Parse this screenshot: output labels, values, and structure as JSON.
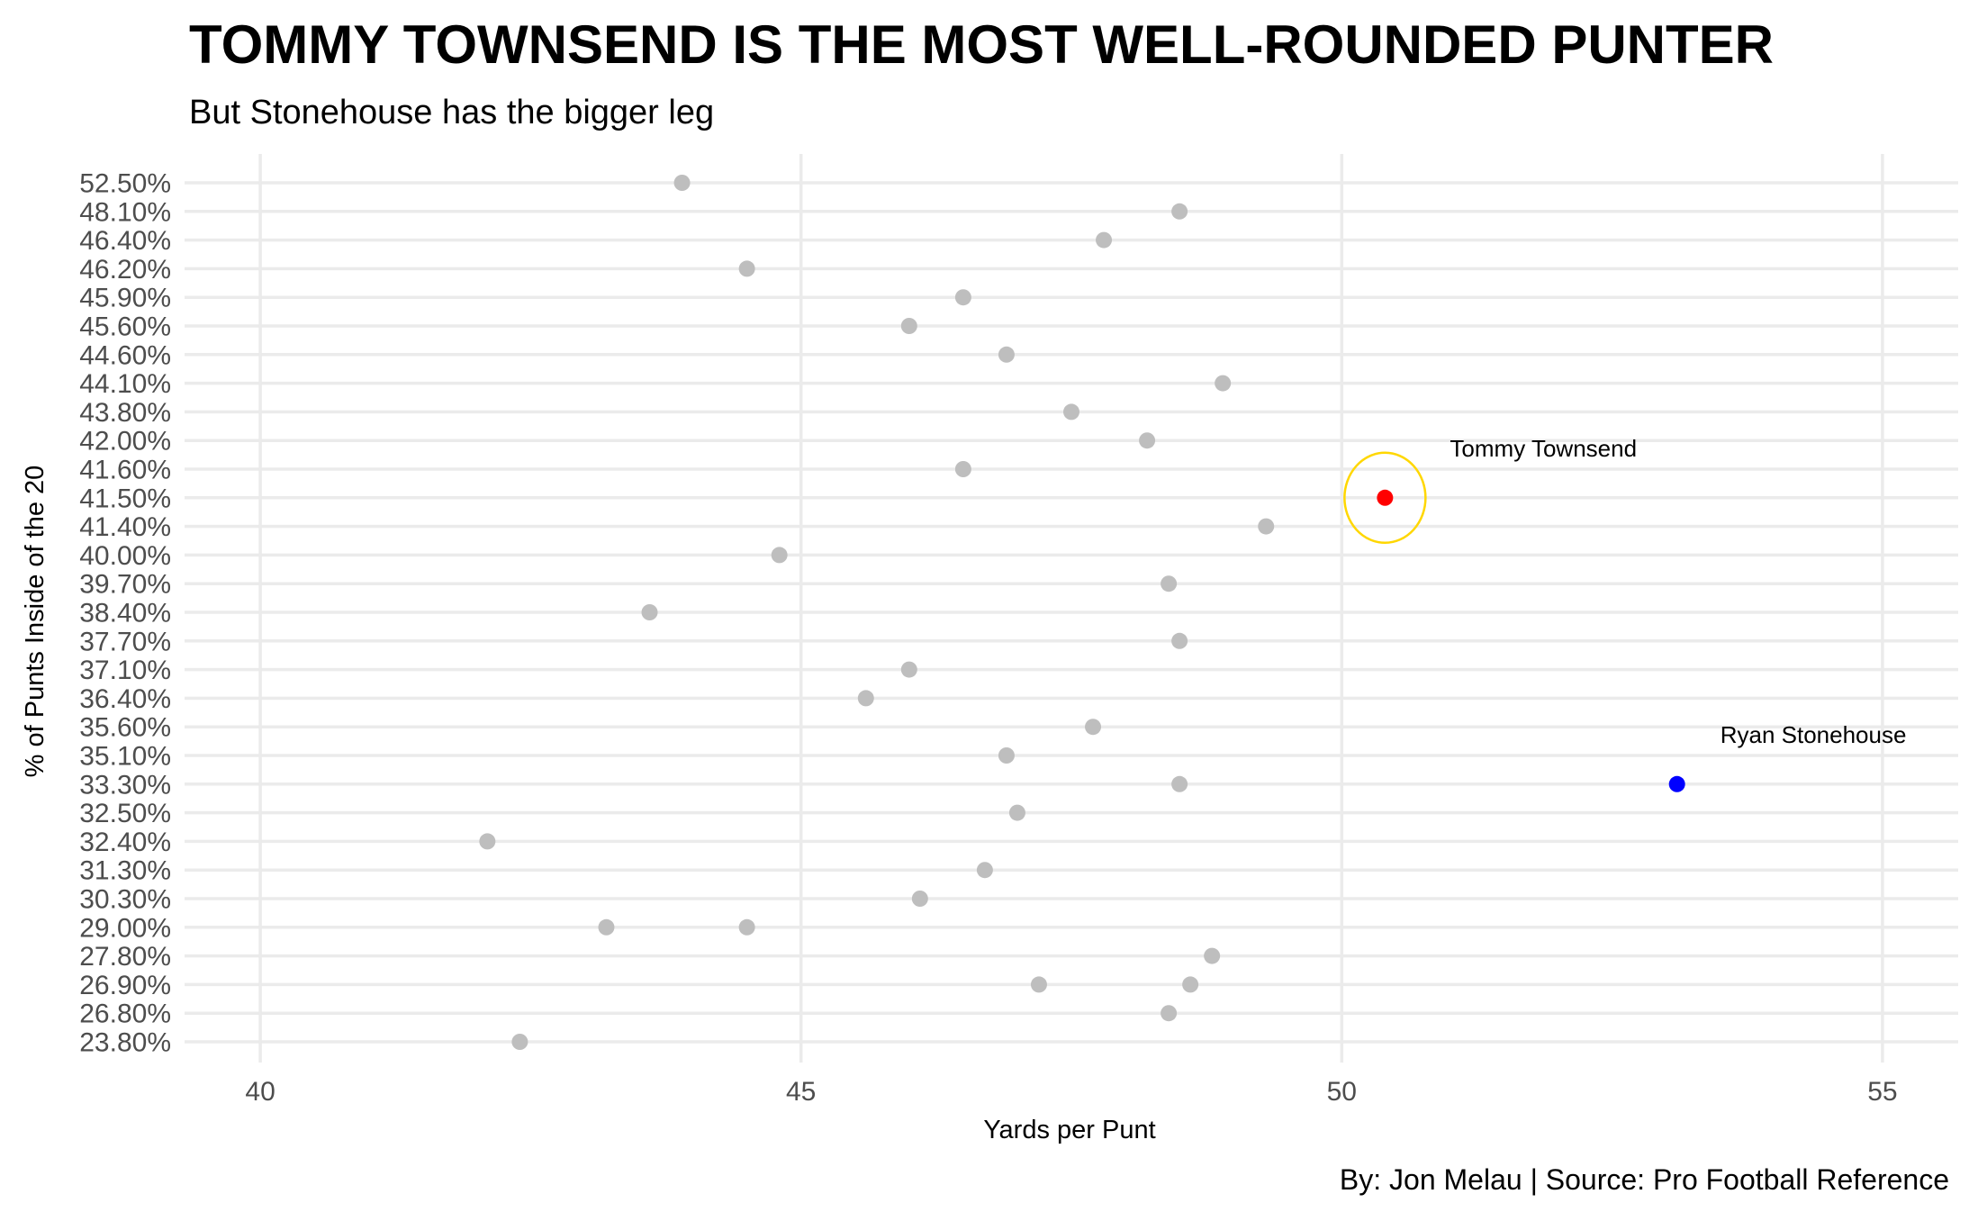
{
  "chart_data": {
    "type": "scatter",
    "title": "TOMMY TOWNSEND IS THE MOST WELL-ROUNDED PUNTER",
    "subtitle": "But Stonehouse has the bigger leg",
    "xlabel": "Yards per Punt",
    "ylabel": "% of Punts Inside of the 20",
    "caption": "By: Jon Melau | Source: Pro Football Reference",
    "xlim": [
      39.3,
      55.7
    ],
    "x_ticks": [
      40,
      45,
      50,
      55
    ],
    "x_tick_labels": [
      "40",
      "45",
      "50",
      "55"
    ],
    "y_type": "categorical",
    "y_categories": [
      "52.50%",
      "48.10%",
      "46.40%",
      "46.20%",
      "45.90%",
      "45.60%",
      "44.60%",
      "44.10%",
      "43.80%",
      "42.00%",
      "41.60%",
      "41.50%",
      "41.40%",
      "40.00%",
      "39.70%",
      "38.40%",
      "37.70%",
      "37.10%",
      "36.40%",
      "35.60%",
      "35.10%",
      "33.30%",
      "32.50%",
      "32.40%",
      "31.30%",
      "30.30%",
      "29.00%",
      "27.80%",
      "26.90%",
      "26.80%",
      "23.80%"
    ],
    "grid": true,
    "legend": "none",
    "colors": {
      "default_point": "#bebebe",
      "highlight_townsend": "#ff0000",
      "highlight_stonehouse": "#0000ff",
      "circle_outline": "#ffd700",
      "grid": "#ebebeb"
    },
    "points": [
      {
        "y": "52.50%",
        "x": 43.9
      },
      {
        "y": "48.10%",
        "x": 48.5
      },
      {
        "y": "46.40%",
        "x": 47.8
      },
      {
        "y": "46.20%",
        "x": 44.5
      },
      {
        "y": "45.90%",
        "x": 46.5
      },
      {
        "y": "45.60%",
        "x": 46.0
      },
      {
        "y": "44.60%",
        "x": 46.9
      },
      {
        "y": "44.10%",
        "x": 48.9
      },
      {
        "y": "43.80%",
        "x": 47.5
      },
      {
        "y": "42.00%",
        "x": 48.2
      },
      {
        "y": "41.60%",
        "x": 46.5
      },
      {
        "y": "41.50%",
        "x": 50.4,
        "highlight": "townsend"
      },
      {
        "y": "41.40%",
        "x": 49.3
      },
      {
        "y": "40.00%",
        "x": 44.8
      },
      {
        "y": "39.70%",
        "x": 48.4
      },
      {
        "y": "38.40%",
        "x": 43.6
      },
      {
        "y": "37.70%",
        "x": 48.5
      },
      {
        "y": "37.10%",
        "x": 46.0
      },
      {
        "y": "36.40%",
        "x": 45.6
      },
      {
        "y": "35.60%",
        "x": 47.7
      },
      {
        "y": "35.10%",
        "x": 46.9
      },
      {
        "y": "33.30%",
        "x": 48.5
      },
      {
        "y": "33.30%",
        "x": 53.1,
        "highlight": "stonehouse"
      },
      {
        "y": "32.50%",
        "x": 47.0
      },
      {
        "y": "32.40%",
        "x": 42.1
      },
      {
        "y": "31.30%",
        "x": 46.7
      },
      {
        "y": "30.30%",
        "x": 46.1
      },
      {
        "y": "29.00%",
        "x": 43.2
      },
      {
        "y": "29.00%",
        "x": 44.5
      },
      {
        "y": "27.80%",
        "x": 48.8
      },
      {
        "y": "26.90%",
        "x": 47.2
      },
      {
        "y": "26.90%",
        "x": 48.6
      },
      {
        "y": "26.80%",
        "x": 48.4
      },
      {
        "y": "23.80%",
        "x": 42.4
      }
    ],
    "annotations": [
      {
        "text": "Tommy Townsend",
        "x": 51.0,
        "y": "41.60%"
      },
      {
        "text": "Ryan Stonehouse",
        "x": 53.5,
        "y": "35.10%"
      }
    ],
    "highlight_circle": {
      "x": 50.4,
      "y": "41.50%"
    }
  }
}
